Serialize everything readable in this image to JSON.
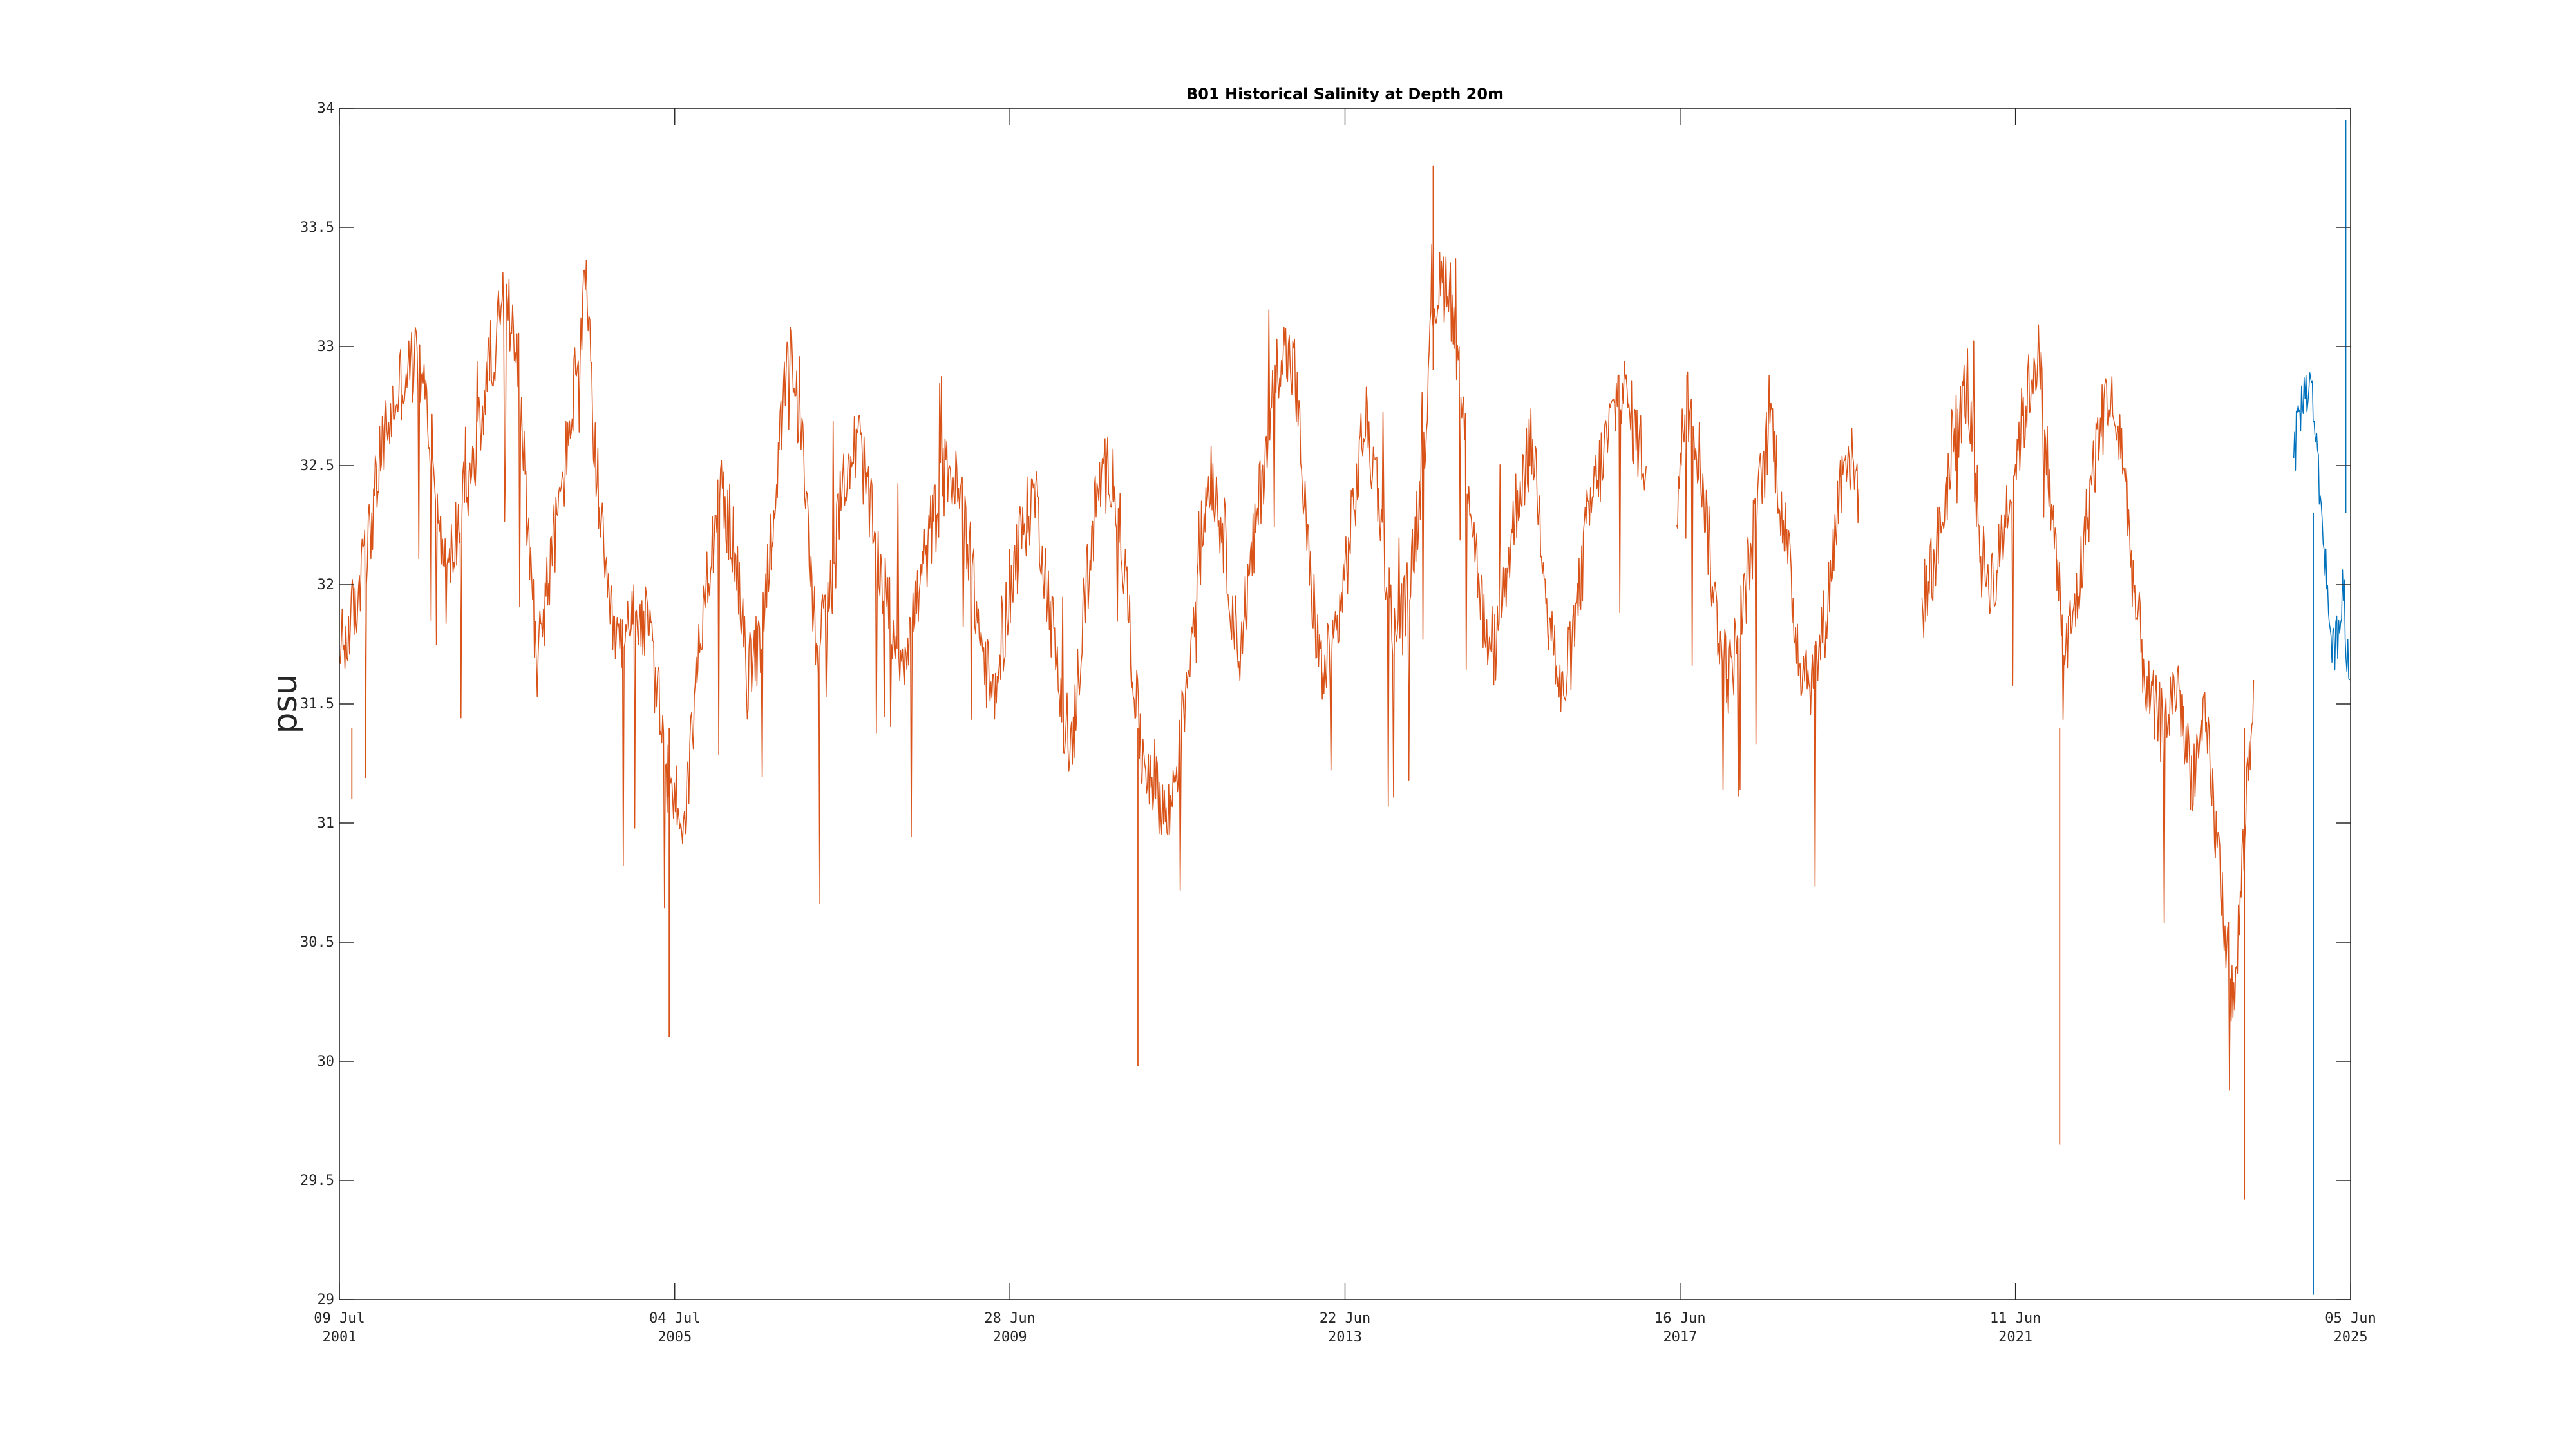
{
  "chart_data": {
    "type": "line",
    "title": "B01 Historical Salinity at Depth 20m",
    "xlabel": "",
    "ylabel": "psu",
    "ylim": [
      29,
      34
    ],
    "yticks": [
      29,
      29.5,
      30,
      30.5,
      31,
      31.5,
      32,
      32.5,
      33,
      33.5,
      34
    ],
    "ytick_labels": [
      "29",
      "29.5",
      "30",
      "30.5",
      "31",
      "31.5",
      "32",
      "32.5",
      "33",
      "33.5",
      "34"
    ],
    "xlim": [
      "2001-07-09",
      "2025-06-05"
    ],
    "xticks": [
      "2001-07-09",
      "2005-07-04",
      "2009-06-28",
      "2013-06-22",
      "2017-06-16",
      "2021-06-11",
      "2025-06-05"
    ],
    "xtick_labels": [
      {
        "line1": "09 Jul",
        "line2": "2001"
      },
      {
        "line1": "04 Jul",
        "line2": "2005"
      },
      {
        "line1": "28 Jun",
        "line2": "2009"
      },
      {
        "line1": "22 Jun",
        "line2": "2013"
      },
      {
        "line1": "16 Jun",
        "line2": "2017"
      },
      {
        "line1": "11 Jun",
        "line2": "2021"
      },
      {
        "line1": "05 Jun",
        "line2": "2025"
      }
    ],
    "grid": false,
    "legend": "none",
    "series": [
      {
        "color": "#D95319",
        "segments": [
          [
            [
              "2001-07-09",
              31.7
            ],
            [
              "2001-09-15",
              31.9
            ],
            [
              "2001-11-15",
              32.2
            ],
            [
              "2002-01-15",
              32.6
            ],
            [
              "2002-04-01",
              32.85
            ],
            [
              "2002-06-15",
              32.95
            ],
            [
              "2002-08-15",
              32.6
            ],
            [
              "2002-10-15",
              32.0
            ],
            [
              "2002-12-15",
              32.3
            ],
            [
              "2003-02-15",
              32.5
            ],
            [
              "2003-04-15",
              32.9
            ],
            [
              "2003-06-15",
              33.15
            ],
            [
              "2003-08-15",
              33.1
            ],
            [
              "2003-10-01",
              32.3
            ],
            [
              "2003-11-15",
              31.7
            ],
            [
              "2004-01-15",
              32.1
            ],
            [
              "2004-03-15",
              32.5
            ],
            [
              "2004-05-15",
              33.0
            ],
            [
              "2004-06-15",
              33.25
            ],
            [
              "2004-07-20",
              32.6
            ],
            [
              "2004-09-15",
              31.9
            ],
            [
              "2004-11-15",
              31.7
            ],
            [
              "2005-01-15",
              31.9
            ],
            [
              "2005-03-15",
              31.8
            ],
            [
              "2005-06-01",
              31.2
            ],
            [
              "2005-08-15",
              31.0
            ],
            [
              "2005-11-01",
              31.9
            ],
            [
              "2006-01-15",
              32.4
            ],
            [
              "2006-03-15",
              32.2
            ],
            [
              "2006-05-15",
              31.6
            ],
            [
              "2006-07-15",
              31.8
            ],
            [
              "2006-09-15",
              32.4
            ],
            [
              "2006-11-15",
              33.0
            ],
            [
              "2007-01-15",
              32.5
            ],
            [
              "2007-03-15",
              31.7
            ],
            [
              "2007-05-15",
              32.0
            ],
            [
              "2007-07-15",
              32.5
            ],
            [
              "2007-09-15",
              32.6
            ],
            [
              "2007-11-15",
              32.2
            ],
            [
              "2008-01-15",
              31.9
            ],
            [
              "2008-03-15",
              31.7
            ],
            [
              "2008-05-15",
              31.9
            ],
            [
              "2008-07-15",
              32.2
            ],
            [
              "2008-10-01",
              32.5
            ],
            [
              "2008-12-15",
              32.3
            ],
            [
              "2009-02-15",
              31.8
            ],
            [
              "2009-04-15",
              31.5
            ],
            [
              "2009-06-15",
              31.9
            ],
            [
              "2009-08-15",
              32.2
            ],
            [
              "2009-10-15",
              32.4
            ],
            [
              "2010-01-01",
              31.8
            ],
            [
              "2010-03-15",
              31.2
            ],
            [
              "2010-05-15",
              31.9
            ],
            [
              "2010-07-15",
              32.4
            ],
            [
              "2010-09-15",
              32.5
            ],
            [
              "2010-11-15",
              32.0
            ],
            [
              "2011-01-15",
              31.3
            ],
            [
              "2011-03-15",
              31.2
            ],
            [
              "2011-05-15",
              31.0
            ],
            [
              "2011-07-15",
              31.4
            ],
            [
              "2011-09-15",
              32.0
            ],
            [
              "2011-11-15",
              32.5
            ],
            [
              "2012-01-15",
              32.2
            ],
            [
              "2012-03-15",
              31.7
            ],
            [
              "2012-05-15",
              32.1
            ],
            [
              "2012-07-15",
              32.6
            ],
            [
              "2012-09-15",
              33.0
            ],
            [
              "2012-11-15",
              32.9
            ],
            [
              "2013-01-15",
              32.1
            ],
            [
              "2013-03-15",
              31.6
            ],
            [
              "2013-05-15",
              31.8
            ],
            [
              "2013-07-15",
              32.2
            ],
            [
              "2013-09-15",
              32.7
            ],
            [
              "2013-11-15",
              32.4
            ],
            [
              "2014-01-15",
              31.8
            ],
            [
              "2014-03-15",
              31.9
            ],
            [
              "2014-05-15",
              32.4
            ],
            [
              "2014-07-15",
              33.2
            ],
            [
              "2014-09-15",
              33.3
            ],
            [
              "2014-11-15",
              32.7
            ],
            [
              "2015-01-15",
              32.1
            ],
            [
              "2015-03-15",
              31.6
            ],
            [
              "2015-05-15",
              32.0
            ],
            [
              "2015-07-15",
              32.4
            ],
            [
              "2015-09-15",
              32.6
            ],
            [
              "2015-11-15",
              32.0
            ],
            [
              "2016-01-15",
              31.5
            ],
            [
              "2016-03-15",
              31.8
            ],
            [
              "2016-05-15",
              32.3
            ],
            [
              "2016-08-01",
              32.6
            ],
            [
              "2016-10-01",
              32.85
            ],
            [
              "2016-12-15",
              32.6
            ],
            [
              "2017-01-20",
              32.5
            ]
          ],
          [
            [
              "2017-06-01",
              32.3
            ],
            [
              "2017-07-15",
              32.85
            ],
            [
              "2017-09-15",
              32.5
            ],
            [
              "2017-11-15",
              31.9
            ],
            [
              "2018-01-15",
              31.6
            ],
            [
              "2018-03-15",
              31.9
            ],
            [
              "2018-05-15",
              32.3
            ],
            [
              "2018-07-15",
              32.7
            ],
            [
              "2018-09-15",
              32.2
            ],
            [
              "2018-11-15",
              31.7
            ],
            [
              "2019-01-15",
              31.6
            ],
            [
              "2019-03-15",
              31.9
            ],
            [
              "2019-06-01",
              32.6
            ],
            [
              "2019-08-01",
              32.4
            ]
          ],
          [
            [
              "2020-05-01",
              31.9
            ],
            [
              "2020-07-15",
              32.2
            ],
            [
              "2020-09-15",
              32.6
            ],
            [
              "2020-11-15",
              32.85
            ],
            [
              "2021-01-15",
              32.1
            ],
            [
              "2021-03-15",
              32.0
            ],
            [
              "2021-05-15",
              32.4
            ],
            [
              "2021-07-15",
              32.7
            ],
            [
              "2021-09-15",
              33.0
            ],
            [
              "2021-11-15",
              32.3
            ],
            [
              "2022-01-15",
              31.7
            ],
            [
              "2022-03-15",
              32.0
            ],
            [
              "2022-05-15",
              32.5
            ],
            [
              "2022-07-15",
              32.8
            ],
            [
              "2022-09-15",
              32.6
            ],
            [
              "2022-11-15",
              31.9
            ],
            [
              "2023-01-15",
              31.5
            ],
            [
              "2023-03-15",
              31.4
            ],
            [
              "2023-05-15",
              31.6
            ],
            [
              "2023-07-15",
              31.2
            ],
            [
              "2023-09-15",
              31.4
            ],
            [
              "2023-11-15",
              30.8
            ],
            [
              "2024-01-15",
              30.2
            ],
            [
              "2024-03-15",
              31.2
            ],
            [
              "2024-04-10",
              31.6
            ]
          ]
        ]
      },
      {
        "color": "#0072BD",
        "segments": [
          [
            [
              "2024-10-01",
              32.5
            ],
            [
              "2024-10-20",
              32.7
            ],
            [
              "2024-11-15",
              32.8
            ],
            [
              "2024-12-10",
              32.85
            ],
            [
              "2025-01-01",
              32.7
            ],
            [
              "2025-01-20",
              32.4
            ],
            [
              "2025-02-10",
              32.2
            ],
            [
              "2025-03-01",
              31.9
            ],
            [
              "2025-03-20",
              31.7
            ],
            [
              "2025-04-10",
              31.8
            ],
            [
              "2025-05-01",
              32.0
            ],
            [
              "2025-05-20",
              31.7
            ],
            [
              "2025-06-01",
              31.6
            ]
          ]
        ]
      }
    ],
    "annotations": [
      {
        "x": "2001-09-01",
        "y": 31.1
      },
      {
        "x": "2005-06-10",
        "y": 30.1
      },
      {
        "x": "2011-01-05",
        "y": 29.98
      },
      {
        "x": "2021-12-20",
        "y": 29.65
      },
      {
        "x": "2024-03-01",
        "y": 29.42
      },
      {
        "x": "2014-07-10",
        "y": 33.76
      },
      {
        "x": "2025-05-15",
        "y": 33.95
      },
      {
        "x": "2024-12-25",
        "y": 29.02
      }
    ]
  }
}
